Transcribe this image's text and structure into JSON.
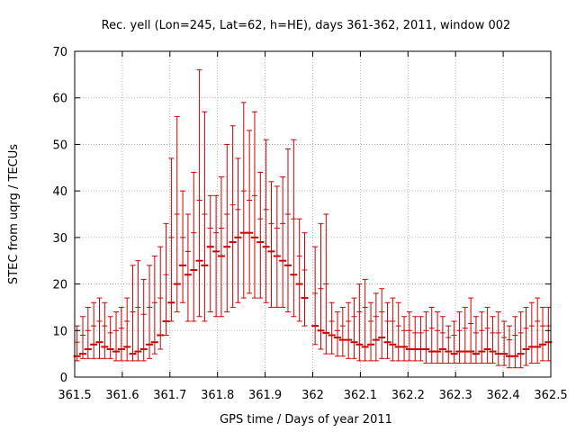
{
  "chart_data": {
    "type": "errorbar",
    "title": "Rec. yell (Lon=245, Lat=62, h=HE), days 361-362, 2011, window 002",
    "xlabel": "GPS time / Days of year 2011",
    "ylabel": "STEC from uqrg / TECUs",
    "xlim": [
      361.5,
      362.5
    ],
    "ylim": [
      0,
      70
    ],
    "xticks": [
      "361.5",
      "361.6",
      "361.7",
      "361.8",
      "361.9",
      "362",
      "362.1",
      "362.2",
      "362.3",
      "362.4",
      "362.5"
    ],
    "yticks": [
      "0",
      "10",
      "20",
      "30",
      "40",
      "50",
      "60",
      "70"
    ],
    "grid": true,
    "color": "#cc0000",
    "series": [
      {
        "name": "STEC",
        "x": [
          361.505,
          361.517,
          361.528,
          361.54,
          361.552,
          361.563,
          361.575,
          361.587,
          361.598,
          361.61,
          361.622,
          361.633,
          361.645,
          361.657,
          361.668,
          361.68,
          361.692,
          361.703,
          361.715,
          361.727,
          361.738,
          361.75,
          361.762,
          361.773,
          361.785,
          361.797,
          361.808,
          361.82,
          361.832,
          361.843,
          361.855,
          361.867,
          361.878,
          361.89,
          361.902,
          361.913,
          361.925,
          361.937,
          361.948,
          361.96,
          361.972,
          361.983,
          362.005,
          362.017,
          362.028,
          362.04,
          362.052,
          362.063,
          362.075,
          362.087,
          362.098,
          362.11,
          362.122,
          362.133,
          362.145,
          362.157,
          362.168,
          362.18,
          362.192,
          362.203,
          362.215,
          362.227,
          362.238,
          362.25,
          362.262,
          362.273,
          362.285,
          362.297,
          362.308,
          362.32,
          362.332,
          362.343,
          362.355,
          362.367,
          362.378,
          362.39,
          362.402,
          362.413,
          362.425,
          362.437,
          362.448,
          362.46,
          362.472,
          362.483,
          362.495
        ],
        "y": [
          4.5,
          5,
          6,
          7,
          7.5,
          6.5,
          6,
          5.5,
          6,
          6.5,
          5,
          5.5,
          6,
          7,
          7.5,
          9,
          12,
          16,
          20,
          24,
          22,
          23,
          25,
          24,
          28,
          27,
          26,
          28,
          29,
          30,
          31,
          31,
          30,
          29,
          28,
          27,
          26,
          25,
          24,
          22,
          20,
          17,
          11,
          10,
          9.5,
          9,
          8.5,
          8,
          8,
          7.5,
          7,
          6.5,
          7,
          8,
          8.5,
          7.5,
          7,
          6.5,
          6.5,
          6,
          6,
          6,
          6,
          5.5,
          5.5,
          6,
          5.5,
          5,
          5.5,
          5.5,
          5.5,
          5,
          5.5,
          6,
          5.5,
          5,
          5,
          4.5,
          4.5,
          5,
          6,
          6.5,
          6.5,
          7,
          7.5
        ],
        "ylow": [
          3.5,
          4,
          4,
          4,
          4,
          4,
          4,
          3.5,
          3.5,
          3.5,
          3.5,
          3.5,
          3.5,
          4,
          5,
          6,
          9,
          12,
          14,
          16,
          12,
          12,
          13,
          12,
          14,
          13,
          13,
          14,
          15,
          16,
          17,
          18,
          17,
          17,
          16,
          15,
          15,
          15,
          14,
          13,
          12,
          11,
          7,
          6,
          5,
          5,
          4.5,
          4.5,
          4,
          4,
          3.5,
          3.5,
          3.5,
          3.5,
          4,
          4,
          3.5,
          3.5,
          3.5,
          3.5,
          3.5,
          3.5,
          3,
          3,
          3,
          3,
          3,
          3,
          3,
          3,
          3,
          3,
          3,
          3,
          3,
          2.5,
          2.5,
          2,
          2,
          2,
          2.5,
          3,
          3,
          3.5,
          3.5
        ],
        "yhigh": [
          11,
          13,
          15,
          16,
          17,
          16,
          13,
          14,
          15,
          17,
          24,
          25,
          21,
          24,
          26,
          28,
          33,
          47,
          56,
          40,
          35,
          44,
          66,
          57,
          39,
          39,
          43,
          50,
          54,
          47,
          59,
          53,
          57,
          44,
          51,
          42,
          41,
          43,
          49,
          51,
          34,
          31,
          28,
          33,
          35,
          16,
          14,
          15,
          16,
          17,
          20,
          21,
          16,
          18,
          19,
          16,
          17,
          16,
          13,
          14,
          13,
          13,
          14,
          15,
          14,
          13,
          11,
          12,
          14,
          15,
          17,
          13,
          14,
          15,
          13,
          14,
          12,
          11,
          13,
          14,
          15,
          16,
          17,
          15,
          15
        ],
        "mid": [
          7.5,
          9,
          10,
          11,
          12,
          11,
          9.5,
          10,
          10.5,
          12,
          14,
          15,
          13.5,
          15,
          16,
          17,
          22,
          30,
          35,
          30,
          27,
          31,
          38,
          35,
          32,
          31,
          32,
          35,
          37,
          36,
          40,
          38,
          39,
          34,
          36,
          33,
          32,
          33,
          35,
          34,
          26,
          23,
          18,
          19,
          20,
          12,
          10,
          11,
          12,
          13,
          14,
          15,
          12,
          13,
          14,
          12,
          12,
          11,
          10,
          10,
          9.5,
          9.5,
          10,
          10.5,
          10,
          9.5,
          8.5,
          9,
          10,
          10.5,
          11.5,
          9.5,
          10,
          10.5,
          9.5,
          9.5,
          8.5,
          8,
          9,
          9.5,
          10.5,
          11,
          12,
          11,
          11
        ]
      }
    ]
  }
}
